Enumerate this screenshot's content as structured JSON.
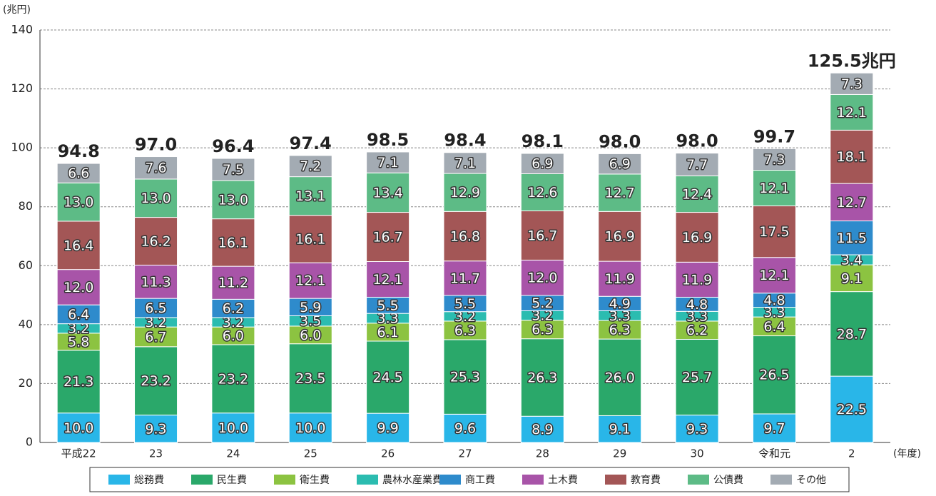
{
  "chart_data": {
    "type": "stacked_bar",
    "y_axis_label": "(兆円)",
    "x_axis_label": "(年度)",
    "categories": [
      "平成22",
      "23",
      "24",
      "25",
      "26",
      "27",
      "28",
      "29",
      "30",
      "令和元",
      "2"
    ],
    "ylim": [
      0,
      140
    ],
    "yticks": [
      0,
      20,
      40,
      60,
      80,
      100,
      120,
      140
    ],
    "grid": true,
    "legend": "bottom",
    "series": [
      {
        "name": "総務費",
        "color": "#29b6e8",
        "values": [
          10.0,
          9.3,
          10.0,
          10.0,
          9.9,
          9.6,
          8.9,
          9.1,
          9.3,
          9.7,
          22.5
        ],
        "value_labels": [
          "10.0",
          "9.3",
          "10.0",
          "10.0",
          "9.9",
          "9.6",
          "8.9",
          "9.1",
          "9.3",
          "9.7",
          "22.5"
        ]
      },
      {
        "name": "民生費",
        "color": "#2aa86a",
        "values": [
          21.3,
          23.2,
          23.2,
          23.5,
          24.5,
          25.3,
          26.3,
          26.0,
          25.7,
          26.5,
          28.7
        ],
        "value_labels": [
          "21.3",
          "23.2",
          "23.2",
          "23.5",
          "24.5",
          "25.3",
          "26.3",
          "26.0",
          "25.7",
          "26.5",
          "28.7"
        ]
      },
      {
        "name": "衛生費",
        "color": "#8cc341",
        "values": [
          5.8,
          6.7,
          6.0,
          6.0,
          6.1,
          6.3,
          6.3,
          6.3,
          6.2,
          6.4,
          9.1
        ],
        "value_labels": [
          "5.8",
          "6.7",
          "6.0",
          "6.0",
          "6.1",
          "6.3",
          "6.3",
          "6.3",
          "6.2",
          "6.4",
          "9.1"
        ]
      },
      {
        "name": "農林水産業費",
        "color": "#2bbcb0",
        "values": [
          3.2,
          3.2,
          3.2,
          3.5,
          3.3,
          3.2,
          3.2,
          3.3,
          3.3,
          3.3,
          3.4
        ],
        "value_labels": [
          "3.2",
          "3.2",
          "3.2",
          "3.5",
          "3.3",
          "3.2",
          "3.2",
          "3.3",
          "3.3",
          "3.3",
          "3.4"
        ]
      },
      {
        "name": "商工費",
        "color": "#2e8bcc",
        "values": [
          6.4,
          6.5,
          6.2,
          5.9,
          5.5,
          5.5,
          5.2,
          4.9,
          4.8,
          4.8,
          11.5
        ],
        "value_labels": [
          "6.4",
          "6.5",
          "6.2",
          "5.9",
          "5.5",
          "5.5",
          "5.2",
          "4.9",
          "4.8",
          "4.8",
          "11.5"
        ]
      },
      {
        "name": "土木費",
        "color": "#a854a8",
        "values": [
          12.0,
          11.3,
          11.2,
          12.1,
          12.1,
          11.7,
          12.0,
          11.9,
          11.9,
          12.1,
          12.7
        ],
        "value_labels": [
          "12.0",
          "11.3",
          "11.2",
          "12.1",
          "12.1",
          "11.7",
          "12.0",
          "11.9",
          "11.9",
          "12.1",
          "12.7"
        ]
      },
      {
        "name": "教育費",
        "color": "#a35656",
        "values": [
          16.4,
          16.2,
          16.1,
          16.1,
          16.7,
          16.8,
          16.7,
          16.9,
          16.9,
          17.5,
          18.1
        ],
        "value_labels": [
          "16.4",
          "16.2",
          "16.1",
          "16.1",
          "16.7",
          "16.8",
          "16.7",
          "16.9",
          "16.9",
          "17.5",
          "18.1"
        ]
      },
      {
        "name": "公債費",
        "color": "#5dbb86",
        "values": [
          13.0,
          13.0,
          13.0,
          13.1,
          13.4,
          12.9,
          12.6,
          12.7,
          12.4,
          12.1,
          12.1
        ],
        "value_labels": [
          "13.0",
          "13.0",
          "13.0",
          "13.1",
          "13.4",
          "12.9",
          "12.6",
          "12.7",
          "12.4",
          "12.1",
          "12.1"
        ]
      },
      {
        "name": "その他",
        "color": "#a3abb3",
        "values": [
          6.6,
          7.6,
          7.5,
          7.2,
          7.1,
          7.1,
          6.9,
          6.9,
          7.7,
          7.3,
          7.3
        ],
        "value_labels": [
          "6.6",
          "7.6",
          "7.5",
          "7.2",
          "7.1",
          "7.1",
          "6.9",
          "6.9",
          "7.7",
          "7.3",
          "7.3"
        ]
      }
    ],
    "totals": {
      "values": [
        94.8,
        97.0,
        96.4,
        97.4,
        98.5,
        98.4,
        98.1,
        98.0,
        98.0,
        99.7,
        125.5
      ],
      "value_labels": [
        "94.8",
        "97.0",
        "96.4",
        "97.4",
        "98.5",
        "98.4",
        "98.1",
        "98.0",
        "98.0",
        "99.7",
        "125.5兆円"
      ]
    }
  }
}
